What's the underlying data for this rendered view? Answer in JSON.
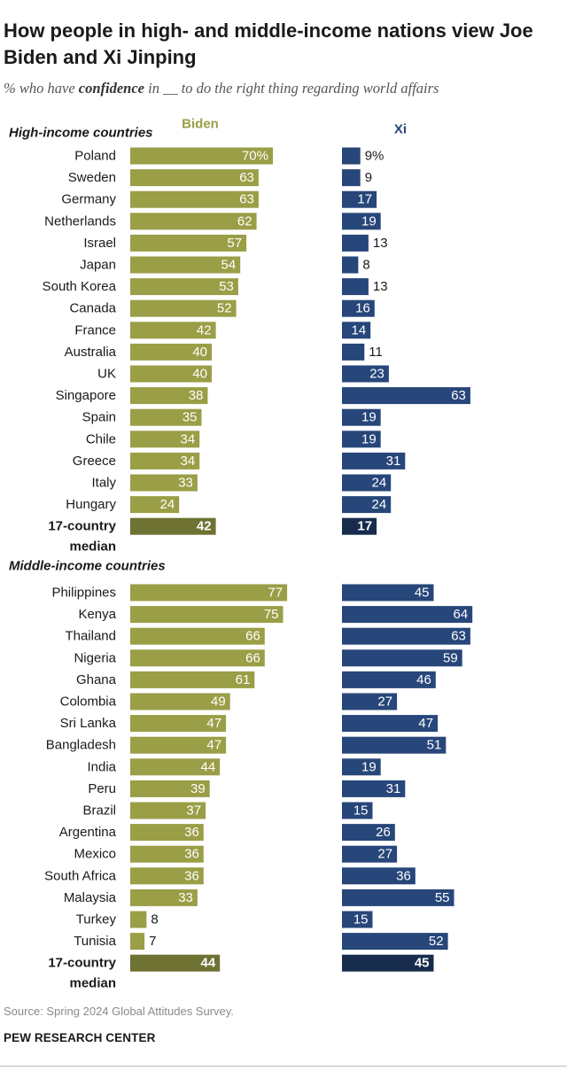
{
  "header": {
    "title": "How people in high- and middle-income nations view Joe Biden and Xi Jinping",
    "subtitle_prefix": "% who have ",
    "subtitle_emph": "confidence",
    "subtitle_suffix": " in __ to do the right thing regarding world affairs"
  },
  "footer": {
    "source": "Source: Spring 2024 Global Attitudes Survey.",
    "brand": "PEW RESEARCH CENTER"
  },
  "colors": {
    "biden": "#9a9e46",
    "biden_median": "#6e7232",
    "xi": "#27467a",
    "xi_median": "#172c4d",
    "biden_header": "#9a9e46",
    "xi_header": "#27467a"
  },
  "chart_data": {
    "type": "bar",
    "orientation": "horizontal",
    "series_names": [
      "Biden",
      "Xi"
    ],
    "unit": "%",
    "groups": [
      {
        "title": "High-income countries",
        "categories": [
          "Poland",
          "Sweden",
          "Germany",
          "Netherlands",
          "Israel",
          "Japan",
          "South Korea",
          "Canada",
          "France",
          "Australia",
          "UK",
          "Singapore",
          "Spain",
          "Chile",
          "Greece",
          "Italy",
          "Hungary"
        ],
        "biden": [
          70,
          63,
          63,
          62,
          57,
          54,
          53,
          52,
          42,
          40,
          40,
          38,
          35,
          34,
          34,
          33,
          24
        ],
        "xi": [
          9,
          9,
          17,
          19,
          13,
          8,
          13,
          16,
          14,
          11,
          23,
          63,
          19,
          19,
          31,
          24,
          24
        ],
        "median_label": [
          "17-country",
          "median"
        ],
        "median_biden": 42,
        "median_xi": 17
      },
      {
        "title": "Middle-income countries",
        "categories": [
          "Philippines",
          "Kenya",
          "Thailand",
          "Nigeria",
          "Ghana",
          "Colombia",
          "Sri Lanka",
          "Bangladesh",
          "India",
          "Peru",
          "Brazil",
          "Argentina",
          "Mexico",
          "South Africa",
          "Malaysia",
          "Turkey",
          "Tunisia"
        ],
        "biden": [
          77,
          75,
          66,
          66,
          61,
          49,
          47,
          47,
          44,
          39,
          37,
          36,
          36,
          36,
          33,
          8,
          7
        ],
        "xi": [
          45,
          64,
          63,
          59,
          46,
          27,
          47,
          51,
          19,
          31,
          15,
          26,
          27,
          36,
          55,
          15,
          52
        ],
        "median_label": [
          "17-country",
          "median"
        ],
        "median_biden": 44,
        "median_xi": 45
      }
    ]
  }
}
